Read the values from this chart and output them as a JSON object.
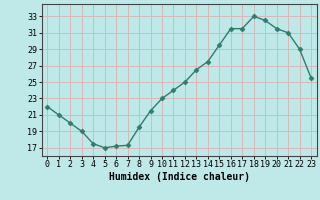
{
  "x": [
    0,
    1,
    2,
    3,
    4,
    5,
    6,
    7,
    8,
    9,
    10,
    11,
    12,
    13,
    14,
    15,
    16,
    17,
    18,
    19,
    20,
    21,
    22,
    23
  ],
  "y": [
    22,
    21,
    20,
    19,
    17.5,
    17,
    17.2,
    17.3,
    19.5,
    21.5,
    23,
    24,
    25,
    26.5,
    27.5,
    29.5,
    31.5,
    31.5,
    33,
    32.5,
    31.5,
    31,
    29,
    25.5
  ],
  "line_color": "#2e7d6e",
  "marker": "D",
  "marker_size": 2.5,
  "bg_color": "#bfe8e8",
  "grid_color": "#d8b8b8",
  "xlabel": "Humidex (Indice chaleur)",
  "xlabel_fontsize": 7,
  "yticks": [
    17,
    19,
    21,
    23,
    25,
    27,
    29,
    31,
    33
  ],
  "xticks": [
    0,
    1,
    2,
    3,
    4,
    5,
    6,
    7,
    8,
    9,
    10,
    11,
    12,
    13,
    14,
    15,
    16,
    17,
    18,
    19,
    20,
    21,
    22,
    23
  ],
  "ylim": [
    16.0,
    34.5
  ],
  "xlim": [
    -0.5,
    23.5
  ],
  "tick_fontsize": 6,
  "linewidth": 1.0
}
